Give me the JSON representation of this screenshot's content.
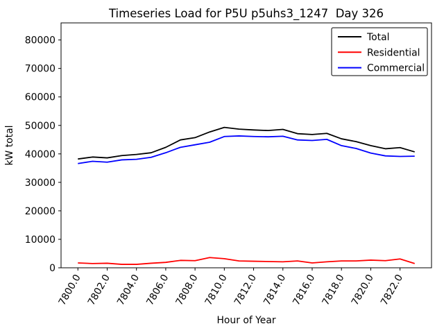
{
  "chart_data": {
    "type": "line",
    "title": "Timeseries Load for P5U p5uhs3_1247  Day 326",
    "xlabel": "Hour of Year",
    "ylabel": "kW total",
    "x": [
      7800,
      7801,
      7802,
      7803,
      7804,
      7805,
      7806,
      7807,
      7808,
      7809,
      7810,
      7811,
      7812,
      7813,
      7814,
      7815,
      7816,
      7817,
      7818,
      7819,
      7820,
      7821,
      7822,
      7823
    ],
    "series": [
      {
        "name": "Total",
        "color": "#000000",
        "values": [
          38200,
          38900,
          38600,
          39400,
          39800,
          40400,
          42300,
          44900,
          45700,
          47700,
          49300,
          48700,
          48400,
          48200,
          48600,
          47100,
          46800,
          47200,
          45300,
          44300,
          42900,
          41800,
          42200,
          40700
        ]
      },
      {
        "name": "Residential",
        "color": "#ff0000",
        "values": [
          1700,
          1500,
          1600,
          1200,
          1200,
          1600,
          1900,
          2600,
          2500,
          3600,
          3200,
          2400,
          2300,
          2200,
          2100,
          2400,
          1700,
          2100,
          2400,
          2400,
          2700,
          2500,
          3100,
          1500
        ]
      },
      {
        "name": "Commercial",
        "color": "#0000ff",
        "values": [
          36600,
          37400,
          37100,
          37900,
          38100,
          38800,
          40400,
          42300,
          43200,
          44100,
          46100,
          46300,
          46100,
          46000,
          46200,
          44900,
          44700,
          45100,
          42900,
          41900,
          40300,
          39300,
          39100,
          39200
        ]
      }
    ],
    "xticks": [
      7800,
      7802,
      7804,
      7806,
      7808,
      7810,
      7812,
      7814,
      7816,
      7818,
      7820,
      7822
    ],
    "xtick_labels": [
      "7800.0",
      "7802.0",
      "7804.0",
      "7806.0",
      "7808.0",
      "7810.0",
      "7812.0",
      "7814.0",
      "7816.0",
      "7818.0",
      "7820.0",
      "7822.0"
    ],
    "yticks": [
      0,
      10000,
      20000,
      30000,
      40000,
      50000,
      60000,
      70000,
      80000
    ],
    "xlim": [
      7798.85,
      7824.15
    ],
    "ylim": [
      0,
      86000
    ],
    "grid": false,
    "legend_position": "upper right"
  }
}
